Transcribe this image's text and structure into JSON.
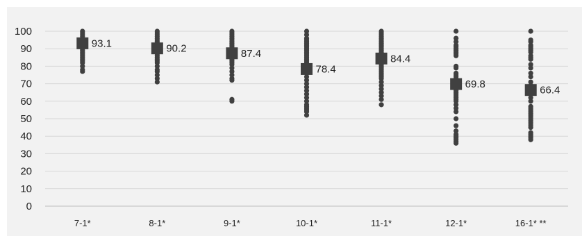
{
  "chart_data": {
    "type": "scatter",
    "title": "",
    "xlabel": "",
    "ylabel": "",
    "ylim": [
      0,
      100
    ],
    "yticks": [
      "0",
      "10",
      "20",
      "30",
      "40",
      "50",
      "60",
      "70",
      "80",
      "90",
      "100"
    ],
    "grid": "horizontal",
    "legend": "none",
    "categories": [
      "7-1*",
      "8-1*",
      "9-1*",
      "10-1*",
      "11-1*",
      "12-1*",
      "16-1* **"
    ],
    "series": [
      {
        "marker": "circle",
        "color": "#404040",
        "values": [
          [
            100,
            99,
            98,
            97,
            96,
            95,
            94,
            93,
            92,
            91,
            90,
            89,
            88,
            87,
            86,
            85,
            84,
            83,
            82,
            80,
            78,
            77
          ],
          [
            100,
            99,
            98,
            97,
            96,
            95,
            94,
            93,
            92,
            91,
            90,
            89,
            88,
            87,
            86,
            85,
            84,
            83,
            82,
            80,
            78,
            77,
            75,
            73,
            71
          ],
          [
            100,
            99,
            98,
            97,
            96,
            95,
            94,
            93,
            92,
            91,
            90,
            89,
            88,
            87,
            86,
            85,
            84,
            83,
            82,
            81,
            79,
            77,
            75,
            73,
            72,
            61,
            60
          ],
          [
            100,
            98,
            96,
            95,
            94,
            93,
            92,
            91,
            90,
            89,
            88,
            87,
            86,
            85,
            84,
            83,
            82,
            81,
            80,
            79,
            78,
            76,
            74,
            72,
            70,
            68,
            66,
            64,
            62,
            60,
            58,
            57,
            56,
            55,
            54,
            52
          ],
          [
            100,
            99,
            98,
            97,
            96,
            95,
            94,
            93,
            92,
            91,
            90,
            89,
            88,
            87,
            86,
            85,
            84,
            83,
            82,
            81,
            80,
            79,
            78,
            77,
            76,
            75,
            74,
            73,
            71,
            69,
            67,
            65,
            63,
            61,
            58
          ],
          [
            100,
            96,
            94,
            92,
            91,
            90,
            89,
            88,
            87,
            86,
            80,
            79,
            76,
            75,
            74,
            73,
            72,
            71,
            70,
            69,
            68,
            66,
            65,
            64,
            63,
            62,
            61,
            60,
            58,
            56,
            54,
            50,
            46,
            43,
            41,
            40,
            39,
            38,
            37,
            36
          ],
          [
            100,
            95,
            94,
            92,
            91,
            90,
            89,
            88,
            86,
            85,
            84,
            81,
            79,
            76,
            74,
            71,
            69,
            68,
            66,
            64,
            62,
            60,
            57,
            56,
            55,
            54,
            53,
            52,
            51,
            50,
            49,
            48,
            47,
            46,
            45,
            42,
            41,
            40,
            39,
            38
          ]
        ]
      },
      {
        "marker": "square",
        "color": "#404040",
        "values": [
          93.1,
          90.2,
          87.4,
          78.4,
          84.4,
          69.8,
          66.4
        ],
        "labels": [
          "93.1",
          "90.2",
          "87.4",
          "78.4",
          "84.4",
          "69.8",
          "66.4"
        ]
      }
    ]
  }
}
